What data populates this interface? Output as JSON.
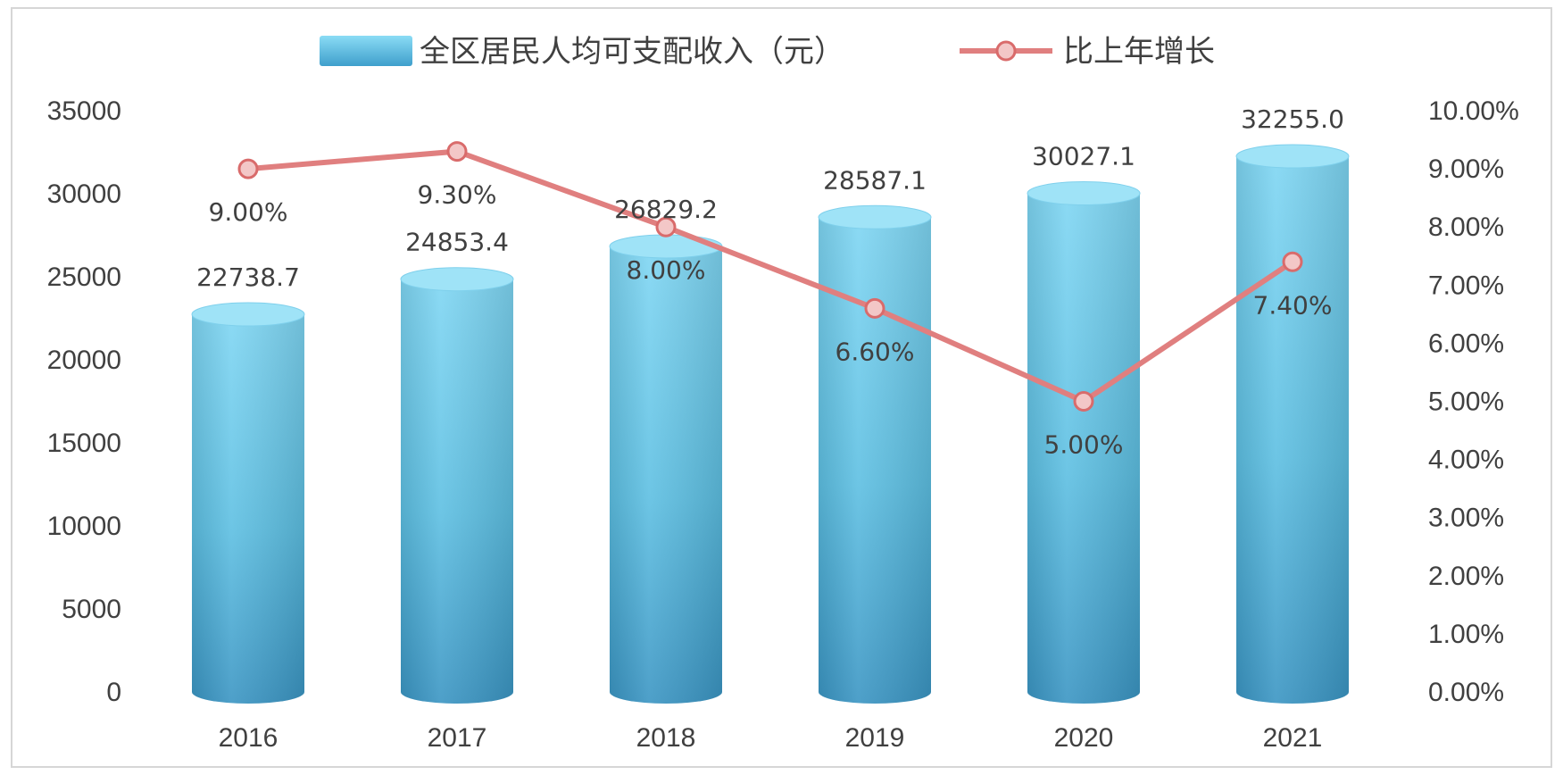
{
  "chart_data": {
    "type": "bar",
    "categories": [
      "2016",
      "2017",
      "2018",
      "2019",
      "2020",
      "2021"
    ],
    "series": [
      {
        "name": "全区居民人均可支配收入（元）",
        "type": "bar",
        "axis": "left",
        "values": [
          22738.7,
          24853.4,
          26829.2,
          28587.1,
          30027.1,
          32255.0
        ],
        "labels": [
          "22738.7",
          "24853.4",
          "26829.2",
          "28587.1",
          "30027.1",
          "32255.0"
        ],
        "color": "#5fc3e4"
      },
      {
        "name": "比上年增长",
        "type": "line",
        "axis": "right",
        "values": [
          9.0,
          9.3,
          8.0,
          6.6,
          5.0,
          7.4
        ],
        "labels": [
          "9.00%",
          "9.30%",
          "8.00%",
          "6.60%",
          "5.00%",
          "7.40%"
        ],
        "color": "#e07f7f"
      }
    ],
    "y_left": {
      "range": [
        0,
        35000
      ],
      "ticks": [
        "0",
        "5000",
        "10000",
        "15000",
        "20000",
        "25000",
        "30000",
        "35000"
      ]
    },
    "y_right": {
      "range": [
        0,
        10
      ],
      "ticks": [
        "0.00%",
        "1.00%",
        "2.00%",
        "3.00%",
        "4.00%",
        "5.00%",
        "6.00%",
        "7.00%",
        "8.00%",
        "9.00%",
        "10.00%"
      ]
    },
    "legend_position": "top-center",
    "grid": false
  }
}
